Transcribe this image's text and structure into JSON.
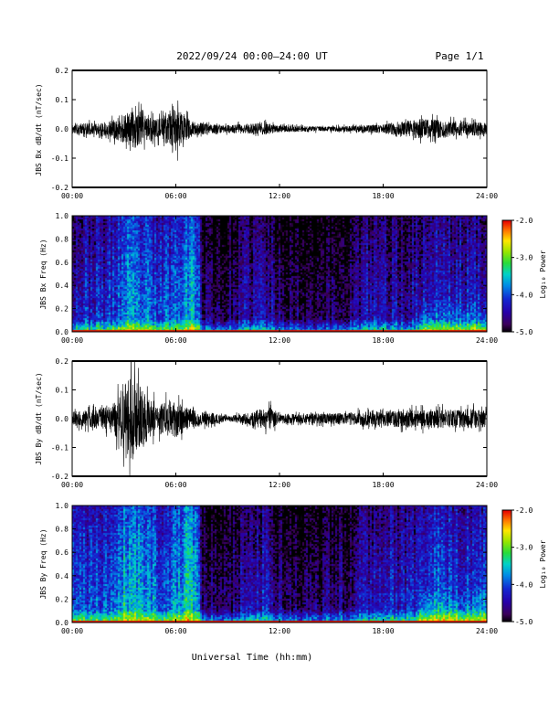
{
  "header": {
    "date_range": "2022/09/24  00:00–24:00 UT",
    "page": "Page 1/1"
  },
  "xlabel": "Universal Time (hh:mm)",
  "chart_data": [
    {
      "type": "line",
      "ylabel": "JBS Bx dB/dt (nT/sec)",
      "xlim": [
        0,
        24
      ],
      "ylim": [
        -0.2,
        0.2
      ],
      "xticks": [
        "00:00",
        "06:00",
        "12:00",
        "18:00",
        "24:00"
      ],
      "yticks": [
        "0.2",
        "0.1",
        "0.0",
        "-0.1",
        "-0.2"
      ],
      "series": [
        {
          "x": [
            0,
            1,
            2,
            2.5,
            3,
            3.5,
            4,
            4.5,
            5,
            5.5,
            6,
            6.5,
            7,
            8,
            9,
            10,
            11,
            11.5,
            12,
            13,
            14,
            15,
            16,
            17,
            18,
            19,
            20,
            21,
            22,
            23,
            24
          ],
          "envelope": [
            0.018,
            0.02,
            0.025,
            0.035,
            0.05,
            0.06,
            0.06,
            0.045,
            0.035,
            0.05,
            0.075,
            0.045,
            0.025,
            0.016,
            0.013,
            0.018,
            0.022,
            0.018,
            0.012,
            0.01,
            0.009,
            0.009,
            0.01,
            0.012,
            0.016,
            0.024,
            0.032,
            0.035,
            0.026,
            0.024,
            0.022
          ]
        }
      ]
    },
    {
      "type": "heatmap",
      "ylabel": "JBS Bx Freq (Hz)",
      "colorbar_label": "Log₁₀ Power",
      "colorbar_ticks": [
        "-2.0",
        "-3.0",
        "-4.0",
        "-5.0"
      ],
      "clim": [
        -5.0,
        -2.0
      ],
      "xlim": [
        0,
        24
      ],
      "ylim": [
        0,
        1.0
      ],
      "xticks": [
        "00:00",
        "06:00",
        "12:00",
        "18:00",
        "24:00"
      ],
      "yticks": [
        "1.0",
        "0.8",
        "0.6",
        "0.4",
        "0.2",
        "0.0"
      ],
      "time_profile_hours": [
        0,
        2,
        3,
        4,
        5,
        6,
        6.5,
        7.2,
        7.5,
        9,
        10,
        11,
        12,
        14,
        16,
        17,
        18,
        19,
        20,
        21,
        22,
        24
      ],
      "time_profile_level": [
        -4.2,
        -4.1,
        -3.7,
        -3.8,
        -4.0,
        -3.8,
        -3.5,
        -3.6,
        -4.6,
        -4.7,
        -4.4,
        -4.3,
        -4.6,
        -4.7,
        -4.6,
        -4.3,
        -4.3,
        -4.4,
        -4.3,
        -4.1,
        -4.2,
        -4.2
      ]
    },
    {
      "type": "line",
      "ylabel": "JBS By dB/dt (nT/sec)",
      "xlim": [
        0,
        24
      ],
      "ylim": [
        -0.2,
        0.2
      ],
      "xticks": [
        "00:00",
        "06:00",
        "12:00",
        "18:00",
        "24:00"
      ],
      "yticks": [
        "0.2",
        "0.1",
        "0.0",
        "-0.1",
        "-0.2"
      ],
      "series": [
        {
          "x": [
            0,
            1,
            2,
            2.5,
            3,
            3.5,
            4,
            4.5,
            5,
            5.5,
            6,
            6.5,
            7,
            8,
            9,
            10,
            11,
            11.5,
            12,
            13,
            14,
            15,
            16,
            17,
            18,
            19,
            20,
            21,
            22,
            23,
            24
          ],
          "envelope": [
            0.025,
            0.03,
            0.04,
            0.06,
            0.12,
            0.15,
            0.1,
            0.07,
            0.05,
            0.06,
            0.07,
            0.045,
            0.03,
            0.022,
            0.008,
            0.02,
            0.035,
            0.04,
            0.018,
            0.016,
            0.018,
            0.018,
            0.022,
            0.025,
            0.026,
            0.03,
            0.032,
            0.034,
            0.03,
            0.035,
            0.03
          ]
        }
      ]
    },
    {
      "type": "heatmap",
      "ylabel": "JBS By Freq (Hz)",
      "colorbar_label": "Log₁₀ Power",
      "colorbar_ticks": [
        "-2.0",
        "-3.0",
        "-4.0",
        "-5.0"
      ],
      "clim": [
        -5.0,
        -2.0
      ],
      "xlim": [
        0,
        24
      ],
      "ylim": [
        0,
        1.0
      ],
      "xticks": [
        "00:00",
        "06:00",
        "12:00",
        "18:00",
        "24:00"
      ],
      "yticks": [
        "1.0",
        "0.8",
        "0.6",
        "0.4",
        "0.2",
        "0.0"
      ],
      "time_profile_hours": [
        0,
        2,
        3,
        4,
        5,
        6,
        6.5,
        7.2,
        7.5,
        9,
        10,
        11,
        12,
        14,
        16,
        17,
        18,
        19,
        20,
        21,
        22,
        24
      ],
      "time_profile_level": [
        -4.0,
        -3.9,
        -3.4,
        -3.5,
        -3.8,
        -3.7,
        -3.4,
        -3.5,
        -4.6,
        -4.7,
        -4.3,
        -4.2,
        -4.6,
        -4.7,
        -4.5,
        -4.2,
        -4.1,
        -4.2,
        -4.1,
        -3.9,
        -4.0,
        -4.0
      ]
    }
  ]
}
